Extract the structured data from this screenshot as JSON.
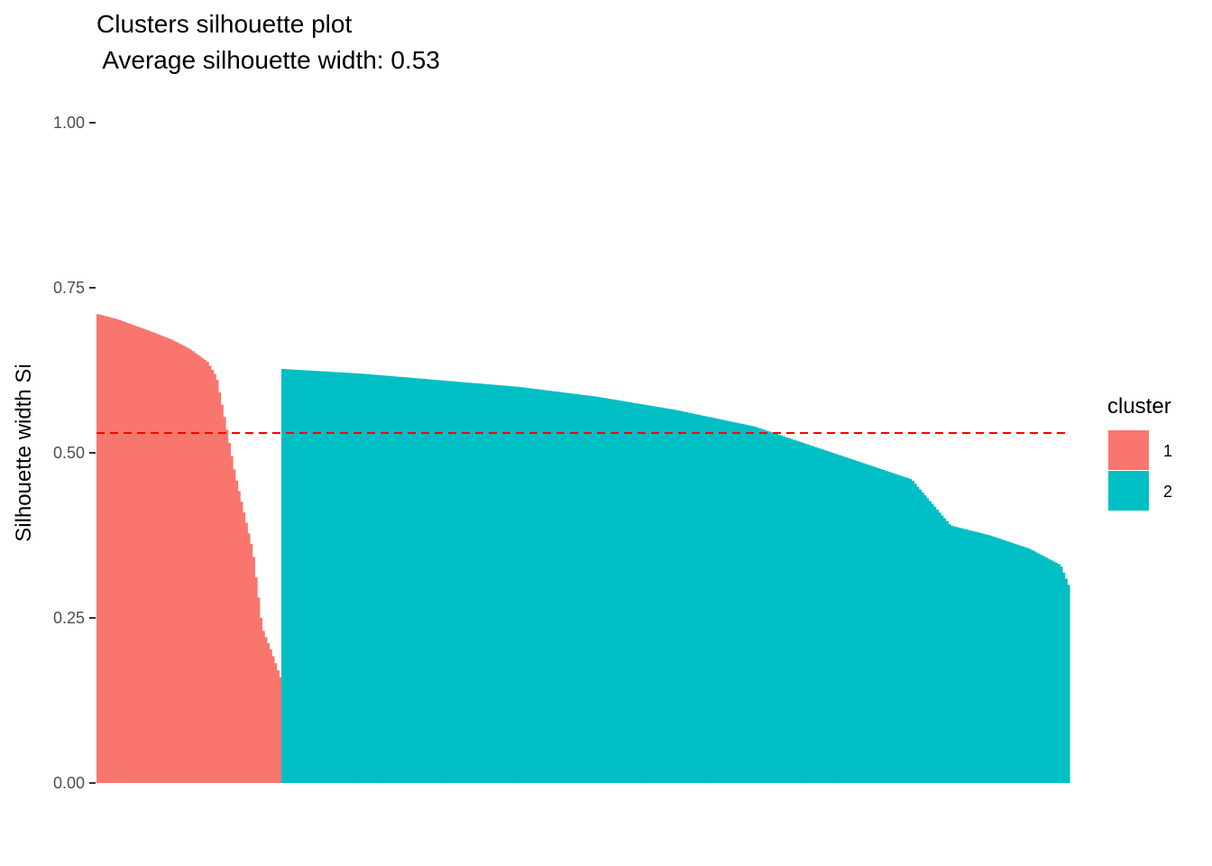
{
  "chart_data": {
    "type": "bar",
    "title": "Clusters silhouette plot",
    "subtitle": " Average silhouette width: 0.53",
    "xlabel": "",
    "ylabel": "Silhouette width Si",
    "ylim": [
      0,
      1
    ],
    "yticks": [
      "0.00",
      "0.25",
      "0.50",
      "0.75",
      "1.00"
    ],
    "average": 0.53,
    "legend": {
      "title": "cluster",
      "position": "right"
    },
    "grid": false,
    "series": [
      {
        "name": "1",
        "color": "#F8766D",
        "count": 76,
        "profile": [
          [
            0,
            0.71
          ],
          [
            0.1,
            0.703
          ],
          [
            0.2,
            0.693
          ],
          [
            0.3,
            0.683
          ],
          [
            0.4,
            0.672
          ],
          [
            0.5,
            0.658
          ],
          [
            0.6,
            0.638
          ],
          [
            0.65,
            0.615
          ],
          [
            0.7,
            0.545
          ],
          [
            0.75,
            0.47
          ],
          [
            0.8,
            0.41
          ],
          [
            0.85,
            0.35
          ],
          [
            0.9,
            0.235
          ],
          [
            0.95,
            0.2
          ],
          [
            1,
            0.16
          ]
        ]
      },
      {
        "name": "2",
        "color": "#00BFC4",
        "count": 324,
        "profile": [
          [
            0,
            0.627
          ],
          [
            0.1,
            0.62
          ],
          [
            0.2,
            0.61
          ],
          [
            0.3,
            0.6
          ],
          [
            0.4,
            0.585
          ],
          [
            0.5,
            0.565
          ],
          [
            0.6,
            0.54
          ],
          [
            0.7,
            0.5
          ],
          [
            0.8,
            0.46
          ],
          [
            0.85,
            0.39
          ],
          [
            0.9,
            0.375
          ],
          [
            0.95,
            0.355
          ],
          [
            0.99,
            0.33
          ],
          [
            1,
            0.3
          ]
        ]
      }
    ]
  }
}
